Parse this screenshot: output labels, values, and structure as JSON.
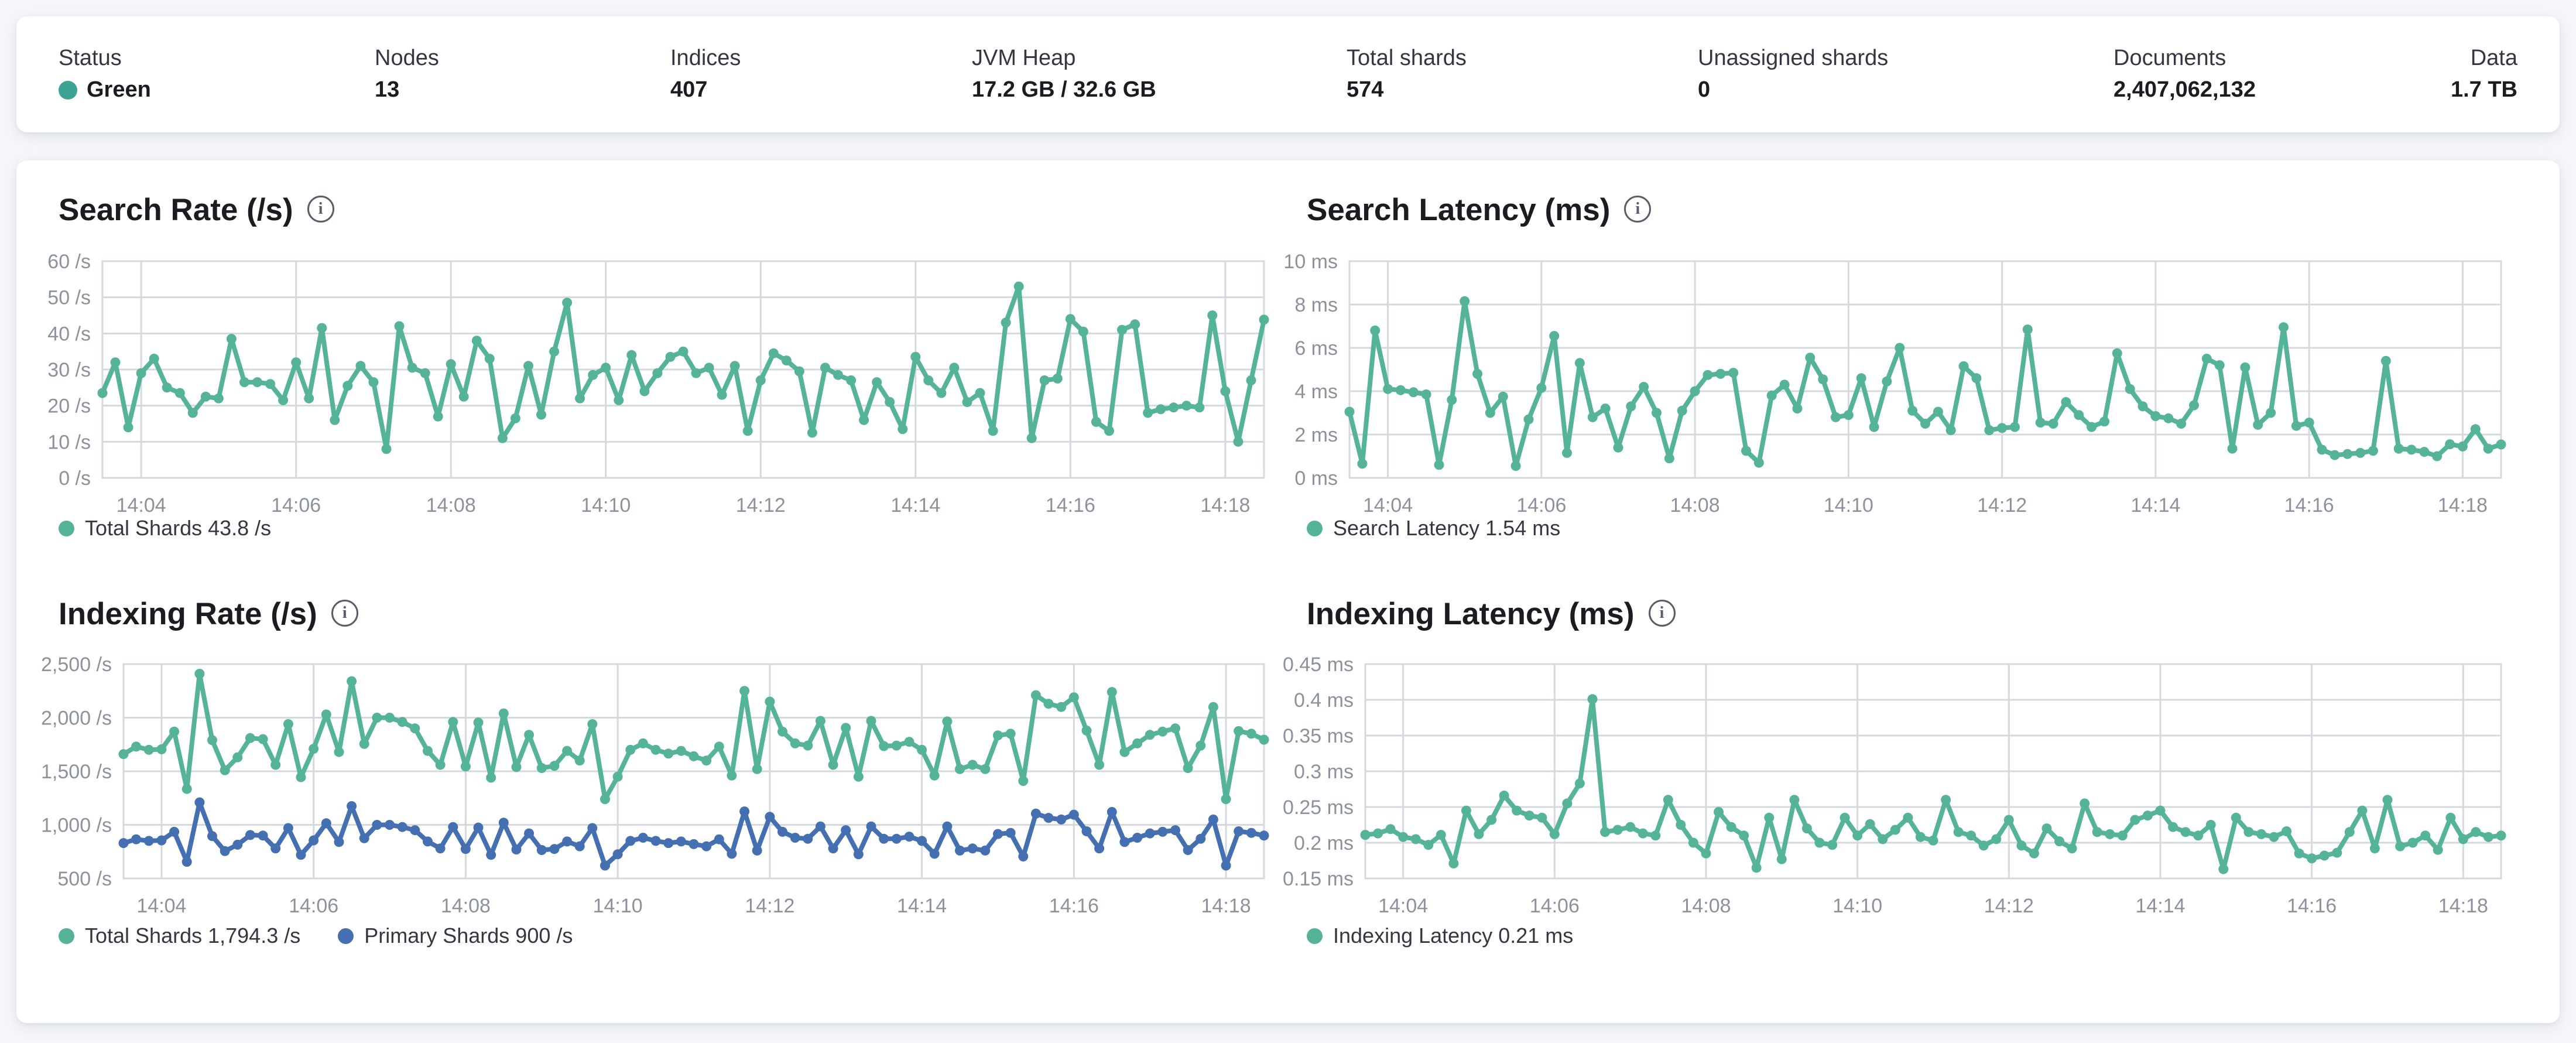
{
  "header": {
    "stats": [
      {
        "id": "status",
        "label": "Status",
        "value": "Green",
        "dot_color": "#3ea294"
      },
      {
        "id": "nodes",
        "label": "Nodes",
        "value": "13"
      },
      {
        "id": "indices",
        "label": "Indices",
        "value": "407"
      },
      {
        "id": "jvm-heap",
        "label": "JVM Heap",
        "value": "17.2 GB / 32.6 GB"
      },
      {
        "id": "total-shards",
        "label": "Total shards",
        "value": "574"
      },
      {
        "id": "unassigned-shards",
        "label": "Unassigned shards",
        "value": "0"
      },
      {
        "id": "documents",
        "label": "Documents",
        "value": "2,407,062,132"
      },
      {
        "id": "data",
        "label": "Data",
        "value": "1.7 TB"
      }
    ]
  },
  "icons": {
    "info_glyph": "i"
  },
  "colors": {
    "teal": "#54b399",
    "blue": "#4470b1",
    "status_green": "#3ea294",
    "grid": "#d5d8de",
    "axis_text": "#8c929c",
    "card_bg": "#ffffff",
    "page_bg": "#f5f7fa"
  },
  "chart_data": [
    {
      "type": "line",
      "title": "Search Rate (/s)",
      "ylabel": "/s",
      "ylim": [
        0,
        60
      ],
      "grid": true,
      "legend_position": "bottom",
      "y_ticks": [
        {
          "v": 0,
          "label": "0 /s"
        },
        {
          "v": 10,
          "label": "10 /s"
        },
        {
          "v": 20,
          "label": "20 /s"
        },
        {
          "v": 30,
          "label": "30 /s"
        },
        {
          "v": 40,
          "label": "40 /s"
        },
        {
          "v": 50,
          "label": "50 /s"
        },
        {
          "v": 60,
          "label": "60 /s"
        }
      ],
      "x_ticks": [
        {
          "i": 3,
          "label": "14:04"
        },
        {
          "i": 15,
          "label": "14:06"
        },
        {
          "i": 27,
          "label": "14:08"
        },
        {
          "i": 39,
          "label": "14:10"
        },
        {
          "i": 51,
          "label": "14:12"
        },
        {
          "i": 63,
          "label": "14:14"
        },
        {
          "i": 75,
          "label": "14:16"
        },
        {
          "i": 87,
          "label": "14:18"
        }
      ],
      "series": [
        {
          "name": "Total Shards",
          "color": "#54b399",
          "values": [
            23.5,
            32,
            14,
            29,
            33,
            25,
            23.5,
            18,
            22.5,
            22,
            38.5,
            26.5,
            26.5,
            26,
            21.5,
            32,
            22,
            41.5,
            16,
            25.5,
            31,
            26.5,
            8,
            42,
            30.5,
            29,
            17,
            31.5,
            22.5,
            38,
            33,
            11,
            16.5,
            31,
            17.5,
            35,
            48.5,
            22,
            28.5,
            30.5,
            21.5,
            34,
            24,
            29,
            33.5,
            35,
            29,
            30.5,
            23,
            31,
            13,
            27,
            34.5,
            32.5,
            29.5,
            12.5,
            30.5,
            28.5,
            27,
            16,
            26.5,
            21,
            13.5,
            33.5,
            27,
            23.5,
            30.5,
            21,
            23.5,
            13,
            43,
            53,
            11,
            27,
            27.5,
            44,
            40.5,
            15.5,
            13,
            41,
            42.5,
            18,
            19,
            19.5,
            20,
            19.5,
            45,
            24,
            10,
            27,
            43.8
          ]
        }
      ],
      "legend": [
        {
          "label": "Total Shards 43.8 /s",
          "color": "#54b399"
        }
      ]
    },
    {
      "type": "line",
      "title": "Search Latency (ms)",
      "ylabel": "ms",
      "ylim": [
        0,
        10
      ],
      "grid": true,
      "legend_position": "bottom",
      "y_ticks": [
        {
          "v": 0,
          "label": "0 ms"
        },
        {
          "v": 2,
          "label": "2 ms"
        },
        {
          "v": 4,
          "label": "4 ms"
        },
        {
          "v": 6,
          "label": "6 ms"
        },
        {
          "v": 8,
          "label": "8 ms"
        },
        {
          "v": 10,
          "label": "10 ms"
        }
      ],
      "x_ticks": [
        {
          "i": 3,
          "label": "14:04"
        },
        {
          "i": 15,
          "label": "14:06"
        },
        {
          "i": 27,
          "label": "14:08"
        },
        {
          "i": 39,
          "label": "14:10"
        },
        {
          "i": 51,
          "label": "14:12"
        },
        {
          "i": 63,
          "label": "14:14"
        },
        {
          "i": 75,
          "label": "14:16"
        },
        {
          "i": 87,
          "label": "14:18"
        }
      ],
      "series": [
        {
          "name": "Search Latency",
          "color": "#54b399",
          "values": [
            3.05,
            0.65,
            6.8,
            4.1,
            4.05,
            3.95,
            3.85,
            0.6,
            3.6,
            8.15,
            4.8,
            3.0,
            3.75,
            0.55,
            2.7,
            4.15,
            6.55,
            1.15,
            5.3,
            2.8,
            3.2,
            1.4,
            3.3,
            4.2,
            3.0,
            0.9,
            3.1,
            4.0,
            4.75,
            4.8,
            4.85,
            1.25,
            0.7,
            3.8,
            4.3,
            3.2,
            5.55,
            4.55,
            2.8,
            2.9,
            4.6,
            2.35,
            4.45,
            6.0,
            3.1,
            2.5,
            3.05,
            2.2,
            5.15,
            4.6,
            2.2,
            2.3,
            2.35,
            6.85,
            2.55,
            2.5,
            3.5,
            2.9,
            2.35,
            2.6,
            5.75,
            4.1,
            3.3,
            2.85,
            2.75,
            2.5,
            3.35,
            5.5,
            5.2,
            1.35,
            5.1,
            2.45,
            3.0,
            6.95,
            2.4,
            2.55,
            1.3,
            1.05,
            1.1,
            1.15,
            1.25,
            5.4,
            1.35,
            1.3,
            1.2,
            1.0,
            1.55,
            1.45,
            2.25,
            1.35,
            1.54
          ]
        }
      ],
      "legend": [
        {
          "label": "Search Latency 1.54 ms",
          "color": "#54b399"
        }
      ]
    },
    {
      "type": "line",
      "title": "Indexing Rate (/s)",
      "ylabel": "/s",
      "ylim": [
        500,
        2500
      ],
      "grid": true,
      "legend_position": "bottom",
      "y_ticks": [
        {
          "v": 500,
          "label": "500 /s"
        },
        {
          "v": 1000,
          "label": "1,000 /s"
        },
        {
          "v": 1500,
          "label": "1,500 /s"
        },
        {
          "v": 2000,
          "label": "2,000 /s"
        },
        {
          "v": 2500,
          "label": "2,500 /s"
        }
      ],
      "x_ticks": [
        {
          "i": 3,
          "label": "14:04"
        },
        {
          "i": 15,
          "label": "14:06"
        },
        {
          "i": 27,
          "label": "14:08"
        },
        {
          "i": 39,
          "label": "14:10"
        },
        {
          "i": 51,
          "label": "14:12"
        },
        {
          "i": 63,
          "label": "14:14"
        },
        {
          "i": 75,
          "label": "14:16"
        },
        {
          "i": 87,
          "label": "14:18"
        }
      ],
      "series": [
        {
          "name": "Total Shards",
          "color": "#54b399",
          "values": [
            1660,
            1730,
            1700,
            1705,
            1870,
            1335,
            2410,
            1790,
            1510,
            1630,
            1810,
            1800,
            1560,
            1940,
            1445,
            1710,
            2030,
            1680,
            2340,
            1755,
            2000,
            2000,
            1960,
            1900,
            1690,
            1560,
            1960,
            1545,
            1955,
            1440,
            2040,
            1540,
            1840,
            1530,
            1550,
            1690,
            1600,
            1940,
            1240,
            1450,
            1700,
            1760,
            1700,
            1665,
            1690,
            1640,
            1600,
            1730,
            1460,
            2250,
            1520,
            2150,
            1870,
            1760,
            1740,
            1970,
            1560,
            1905,
            1450,
            1970,
            1735,
            1740,
            1775,
            1700,
            1460,
            1965,
            1520,
            1560,
            1520,
            1835,
            1850,
            1410,
            2210,
            2130,
            2100,
            2190,
            1880,
            1560,
            2240,
            1680,
            1760,
            1840,
            1870,
            1900,
            1530,
            1740,
            2100,
            1240,
            1875,
            1850,
            1794.3
          ]
        },
        {
          "name": "Primary Shards",
          "color": "#4470b1",
          "values": [
            830,
            865,
            850,
            855,
            935,
            655,
            1210,
            895,
            755,
            815,
            905,
            900,
            780,
            970,
            720,
            855,
            1015,
            840,
            1175,
            875,
            1000,
            1000,
            980,
            950,
            845,
            780,
            980,
            775,
            975,
            720,
            1020,
            770,
            920,
            765,
            775,
            845,
            800,
            970,
            620,
            725,
            850,
            880,
            850,
            830,
            845,
            820,
            800,
            865,
            730,
            1125,
            760,
            1075,
            935,
            880,
            870,
            985,
            780,
            950,
            725,
            985,
            870,
            870,
            890,
            850,
            730,
            985,
            760,
            780,
            760,
            915,
            925,
            705,
            1105,
            1065,
            1050,
            1095,
            940,
            780,
            1120,
            840,
            880,
            920,
            935,
            950,
            765,
            870,
            1050,
            620,
            940,
            925,
            900
          ]
        }
      ],
      "legend": [
        {
          "label": "Total Shards 1,794.3 /s",
          "color": "#54b399"
        },
        {
          "label": "Primary Shards 900 /s",
          "color": "#4470b1"
        }
      ]
    },
    {
      "type": "line",
      "title": "Indexing Latency (ms)",
      "ylabel": "ms",
      "ylim": [
        0.15,
        0.45
      ],
      "grid": true,
      "legend_position": "bottom",
      "y_ticks": [
        {
          "v": 0.15,
          "label": "0.15 ms"
        },
        {
          "v": 0.2,
          "label": "0.2 ms"
        },
        {
          "v": 0.25,
          "label": "0.25 ms"
        },
        {
          "v": 0.3,
          "label": "0.3 ms"
        },
        {
          "v": 0.35,
          "label": "0.35 ms"
        },
        {
          "v": 0.4,
          "label": "0.4 ms"
        },
        {
          "v": 0.45,
          "label": "0.45 ms"
        }
      ],
      "x_ticks": [
        {
          "i": 3,
          "label": "14:04"
        },
        {
          "i": 15,
          "label": "14:06"
        },
        {
          "i": 27,
          "label": "14:08"
        },
        {
          "i": 39,
          "label": "14:10"
        },
        {
          "i": 51,
          "label": "14:12"
        },
        {
          "i": 63,
          "label": "14:14"
        },
        {
          "i": 75,
          "label": "14:16"
        },
        {
          "i": 87,
          "label": "14:18"
        }
      ],
      "series": [
        {
          "name": "Indexing Latency",
          "color": "#54b399",
          "values": [
            0.211,
            0.213,
            0.219,
            0.208,
            0.205,
            0.197,
            0.211,
            0.171,
            0.245,
            0.212,
            0.232,
            0.266,
            0.245,
            0.238,
            0.235,
            0.212,
            0.255,
            0.283,
            0.401,
            0.215,
            0.218,
            0.222,
            0.213,
            0.21,
            0.26,
            0.225,
            0.2,
            0.185,
            0.243,
            0.222,
            0.21,
            0.165,
            0.235,
            0.177,
            0.26,
            0.22,
            0.2,
            0.197,
            0.235,
            0.21,
            0.226,
            0.205,
            0.218,
            0.235,
            0.208,
            0.203,
            0.26,
            0.215,
            0.21,
            0.196,
            0.205,
            0.232,
            0.196,
            0.185,
            0.22,
            0.202,
            0.192,
            0.255,
            0.215,
            0.212,
            0.21,
            0.232,
            0.238,
            0.245,
            0.222,
            0.215,
            0.21,
            0.225,
            0.163,
            0.235,
            0.215,
            0.212,
            0.208,
            0.216,
            0.185,
            0.178,
            0.182,
            0.186,
            0.215,
            0.245,
            0.192,
            0.26,
            0.195,
            0.2,
            0.21,
            0.19,
            0.235,
            0.205,
            0.215,
            0.208,
            0.21
          ]
        }
      ],
      "legend": [
        {
          "label": "Indexing Latency 0.21 ms",
          "color": "#54b399"
        }
      ]
    }
  ]
}
